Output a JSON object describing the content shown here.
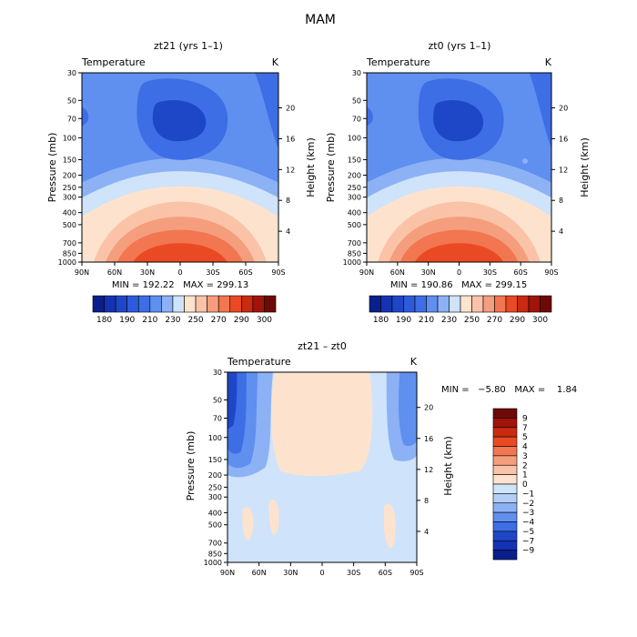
{
  "figure_title": "MAM",
  "colors": {
    "cold_deep": "#1e47c8",
    "cold": "#3d6ee6",
    "cool": "#5f8fef",
    "light_blue": "#8cb1f5",
    "pale_blue": "#cfe3fb",
    "cream": "#fde3ce",
    "peach": "#fac3a8",
    "salmon": "#f59e7e",
    "orange": "#f27650",
    "red_orange": "#ea4a23"
  },
  "chart_data": [
    {
      "type": "heatmap",
      "id": "panel_a",
      "title": "zt21 (yrs 1–1)",
      "variable": "Temperature",
      "units": "K",
      "ylabel": "Pressure (mb)",
      "y2label": "Height (km)",
      "x_ticks": [
        "90N",
        "60N",
        "30N",
        "0",
        "30S",
        "60S",
        "90S"
      ],
      "y_ticks": [
        "30",
        "50",
        "70",
        "100",
        "150",
        "200",
        "250",
        "300",
        "400",
        "500",
        "700",
        "850",
        "1000"
      ],
      "y2_ticks": [
        "20",
        "16",
        "12",
        "8",
        "4"
      ],
      "stats": "MIN = 192.22   MAX = 299.13",
      "min": 192.22,
      "max": 299.13,
      "colorbar": {
        "orientation": "horizontal",
        "labels": [
          "180",
          "190",
          "210",
          "230",
          "250",
          "270",
          "290",
          "300"
        ],
        "colors": [
          "#0a1f8c",
          "#1432b4",
          "#1e47c8",
          "#2e5bdc",
          "#3d6ee6",
          "#5f8fef",
          "#8cb1f5",
          "#cfe3fb",
          "#fde3ce",
          "#fac3a8",
          "#f59e7e",
          "#f27650",
          "#ea4a23",
          "#c92a10",
          "#a0140a",
          "#6e0a06"
        ]
      }
    },
    {
      "type": "heatmap",
      "id": "panel_b",
      "title": "zt0 (yrs 1–1)",
      "variable": "Temperature",
      "units": "K",
      "ylabel": "Pressure (mb)",
      "y2label": "Height (km)",
      "x_ticks": [
        "90N",
        "60N",
        "30N",
        "0",
        "30S",
        "60S",
        "90S"
      ],
      "y_ticks": [
        "30",
        "50",
        "70",
        "100",
        "150",
        "200",
        "250",
        "300",
        "400",
        "500",
        "700",
        "850",
        "1000"
      ],
      "y2_ticks": [
        "20",
        "16",
        "12",
        "8",
        "4"
      ],
      "stats": "MIN = 190.86   MAX = 299.15",
      "min": 190.86,
      "max": 299.15,
      "colorbar": {
        "orientation": "horizontal",
        "labels": [
          "180",
          "190",
          "210",
          "230",
          "250",
          "270",
          "290",
          "300"
        ],
        "colors": [
          "#0a1f8c",
          "#1432b4",
          "#1e47c8",
          "#2e5bdc",
          "#3d6ee6",
          "#5f8fef",
          "#8cb1f5",
          "#cfe3fb",
          "#fde3ce",
          "#fac3a8",
          "#f59e7e",
          "#f27650",
          "#ea4a23",
          "#c92a10",
          "#a0140a",
          "#6e0a06"
        ]
      }
    },
    {
      "type": "heatmap",
      "id": "panel_diff",
      "title": "zt21 – zt0",
      "variable": "Temperature",
      "units": "K",
      "ylabel": "Pressure (mb)",
      "y2label": "Height (km)",
      "x_ticks": [
        "90N",
        "60N",
        "30N",
        "0",
        "30S",
        "60S",
        "90S"
      ],
      "y_ticks": [
        "30",
        "50",
        "70",
        "100",
        "150",
        "200",
        "250",
        "300",
        "400",
        "500",
        "700",
        "850",
        "1000"
      ],
      "y2_ticks": [
        "20",
        "16",
        "12",
        "8",
        "4"
      ],
      "stats": "MIN =   −5.80   MAX =    1.84",
      "min": -5.8,
      "max": 1.84,
      "colorbar": {
        "orientation": "vertical",
        "labels": [
          "9",
          "7",
          "5",
          "4",
          "3",
          "2",
          "1",
          "0",
          "−1",
          "−2",
          "−3",
          "−4",
          "−5",
          "−7",
          "−9"
        ],
        "colors": [
          "#6e0a06",
          "#a0140a",
          "#c92a10",
          "#ea4a23",
          "#f27650",
          "#f59e7e",
          "#fac3a8",
          "#fde3ce",
          "#cfe3fb",
          "#b3cdf8",
          "#8cb1f5",
          "#5f8fef",
          "#3d6ee6",
          "#1e47c8",
          "#1432b4",
          "#0a1f8c"
        ]
      }
    }
  ]
}
